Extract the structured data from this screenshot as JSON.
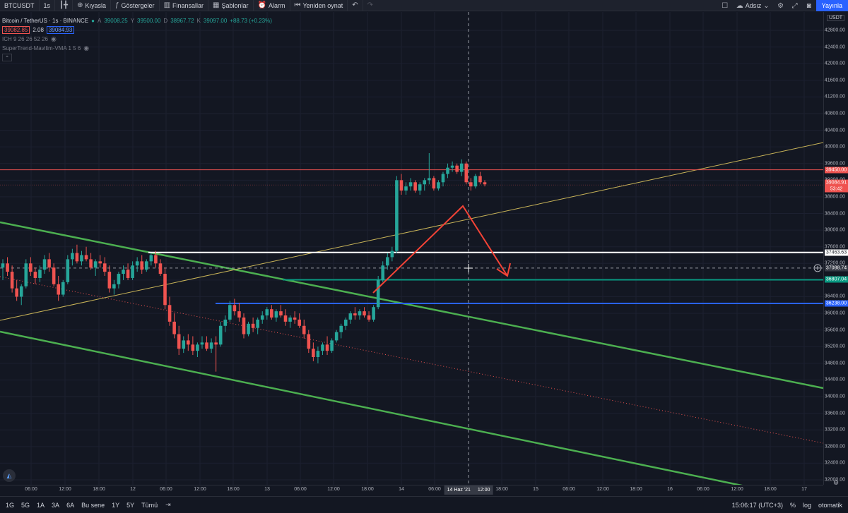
{
  "toolbar": {
    "symbol": "BTCUSDT",
    "interval": "1s",
    "compare": "Kıyasla",
    "indicators": "Göstergeler",
    "financials": "Finansallar",
    "templates": "Şablonlar",
    "alert": "Alarm",
    "replay": "Yeniden oynat",
    "layout_name": "Adsız",
    "publish": "Yayınla"
  },
  "legend": {
    "title": "Bitcoin / TetherUS · 1s · BINANCE",
    "o_key": "A",
    "o_val": "39008.25",
    "h_key": "Y",
    "h_val": "39500.00",
    "l_key": "D",
    "l_val": "38967.72",
    "c_key": "K",
    "c_val": "39097.00",
    "change": "+88.73 (+0.23%)",
    "bid": "39082.85",
    "spread": "2.08",
    "ask": "39084.93",
    "indicator1": "ICH 9 26 26 52 26",
    "indicator2": "SuperTrend-Mavilim-VMA 1 5 6"
  },
  "price_axis": {
    "currency": "USDT",
    "min": 32000,
    "max": 43000,
    "ticks": [
      "42800.00",
      "42400.00",
      "42000.00",
      "41600.00",
      "41200.00",
      "40800.00",
      "40400.00",
      "40000.00",
      "39600.00",
      "39200.00",
      "38800.00",
      "38400.00",
      "38000.00",
      "37600.00",
      "37200.00",
      "36800.00",
      "36400.00",
      "36000.00",
      "35600.00",
      "35200.00",
      "34800.00",
      "34400.00",
      "34000.00",
      "33600.00",
      "33200.00",
      "32800.00",
      "32400.00",
      "32000.00"
    ],
    "labels": [
      {
        "text": "39450.00",
        "price": 39450,
        "color": "#ef5350"
      },
      {
        "text": "39084.91",
        "price": 39130,
        "color": "#ef5350"
      },
      {
        "text": "53:42",
        "price": 38980,
        "color": "#ef5350"
      },
      {
        "text": "37463.63",
        "price": 37463.63,
        "color": "#ffffff"
      },
      {
        "text": "37088.74",
        "price": 37088.74,
        "color": "#363a45"
      },
      {
        "text": "36807.04",
        "price": 36807.04,
        "color": "#089981"
      },
      {
        "text": "36238.00",
        "price": 36238,
        "color": "#2962ff"
      }
    ]
  },
  "time_axis": {
    "ticks": [
      "06:00",
      "12:00",
      "18:00",
      "12",
      "06:00",
      "12:00",
      "18:00",
      "13",
      "06:00",
      "12:00",
      "18:00",
      "14",
      "06:00",
      "18:00",
      "15",
      "06:00",
      "12:00",
      "18:00",
      "16",
      "06:00",
      "12:00",
      "18:00",
      "17"
    ],
    "crosshair_label": "14 Haz '21",
    "crosshair_sub": "12:00"
  },
  "bottom": {
    "ranges": [
      "1G",
      "5G",
      "1A",
      "3A",
      "6A",
      "Bu sene",
      "1Y",
      "5Y",
      "Tümü"
    ],
    "clock": "15:06:17 (UTC+3)",
    "percent": "%",
    "log": "log",
    "auto": "otomatik"
  },
  "colors": {
    "up": "#26a69a",
    "down": "#ef5350",
    "resistance": "#ef5350",
    "support_white": "#ffffff",
    "support_teal": "#089981",
    "support_blue": "#2962ff",
    "channel": "#4caf50",
    "trendline": "#c9b458",
    "arrow": "#f44336"
  },
  "icons": {
    "add": "plus-circle-icon",
    "indicators": "fx-icon",
    "financials": "bar-chart-icon",
    "templates": "templates-icon",
    "alert": "alarm-clock-icon",
    "replay": "rewind-icon",
    "undo": "undo-icon",
    "redo": "redo-icon",
    "fullscreen": "fullscreen-icon",
    "cloud": "cloud-icon",
    "settings": "gear-icon",
    "snapshot": "camera-icon"
  },
  "chart_data": {
    "type": "candlestick",
    "ylim": [
      32000,
      43000
    ],
    "horizontal_levels": [
      {
        "price": 39450,
        "color": "#ef5350"
      },
      {
        "price": 37463.63,
        "color": "#ffffff"
      },
      {
        "price": 36807.04,
        "color": "#089981"
      },
      {
        "price": 36238,
        "color": "#2962ff"
      }
    ],
    "candles": [
      [
        37100,
        37300,
        36800,
        37200
      ],
      [
        37200,
        37350,
        36900,
        37000
      ],
      [
        37000,
        37150,
        36500,
        36600
      ],
      [
        36600,
        36800,
        36300,
        36400
      ],
      [
        36400,
        36700,
        36200,
        36650
      ],
      [
        36650,
        37300,
        36600,
        37200
      ],
      [
        37200,
        37350,
        36900,
        37000
      ],
      [
        37000,
        37100,
        36700,
        36850
      ],
      [
        36850,
        37150,
        36750,
        37050
      ],
      [
        37050,
        37400,
        36950,
        37300
      ],
      [
        37300,
        37450,
        37000,
        37100
      ],
      [
        37100,
        37200,
        36650,
        36700
      ],
      [
        36700,
        36900,
        36300,
        36450
      ],
      [
        36450,
        36800,
        36400,
        36750
      ],
      [
        36750,
        37400,
        36700,
        37300
      ],
      [
        37300,
        37550,
        37150,
        37450
      ],
      [
        37450,
        37650,
        37200,
        37250
      ],
      [
        37250,
        37500,
        37150,
        37400
      ],
      [
        37400,
        37600,
        37250,
        37300
      ],
      [
        37300,
        37450,
        37050,
        37100
      ],
      [
        37100,
        37300,
        36900,
        37250
      ],
      [
        37250,
        37400,
        37100,
        37200
      ],
      [
        37200,
        37350,
        36900,
        37000
      ],
      [
        37000,
        37150,
        36500,
        36600
      ],
      [
        36600,
        36800,
        36450,
        36700
      ],
      [
        36700,
        37000,
        36600,
        36950
      ],
      [
        36950,
        37150,
        36800,
        37050
      ],
      [
        37050,
        37200,
        36800,
        36850
      ],
      [
        36850,
        37250,
        36800,
        37150
      ],
      [
        37150,
        37350,
        37000,
        37250
      ],
      [
        37250,
        37400,
        36950,
        37050
      ],
      [
        37050,
        37300,
        37000,
        37250
      ],
      [
        37250,
        37450,
        37150,
        37400
      ],
      [
        37400,
        37500,
        37100,
        37200
      ],
      [
        37200,
        37300,
        36900,
        36950
      ],
      [
        36950,
        37100,
        36100,
        36200
      ],
      [
        36200,
        36400,
        35700,
        35800
      ],
      [
        35800,
        36000,
        35400,
        35500
      ],
      [
        35500,
        35700,
        35000,
        35150
      ],
      [
        35150,
        35450,
        35050,
        35350
      ],
      [
        35350,
        35500,
        35100,
        35250
      ],
      [
        35250,
        35450,
        35000,
        35100
      ],
      [
        35100,
        35300,
        34950,
        35250
      ],
      [
        35250,
        35450,
        35150,
        35300
      ],
      [
        35300,
        35450,
        35100,
        35150
      ],
      [
        35150,
        35400,
        35050,
        35300
      ],
      [
        35300,
        35450,
        34600,
        35250
      ],
      [
        35250,
        35800,
        35200,
        35700
      ],
      [
        35700,
        35950,
        35550,
        35850
      ],
      [
        35850,
        36300,
        35800,
        36200
      ],
      [
        36200,
        36350,
        35950,
        36050
      ],
      [
        36050,
        36250,
        35800,
        35900
      ],
      [
        35900,
        36000,
        35400,
        35500
      ],
      [
        35500,
        35800,
        35450,
        35750
      ],
      [
        35750,
        35900,
        35550,
        35650
      ],
      [
        35650,
        35900,
        35500,
        35850
      ],
      [
        35850,
        36050,
        35750,
        35950
      ],
      [
        35950,
        36150,
        35850,
        36100
      ],
      [
        36100,
        36200,
        35850,
        35900
      ],
      [
        35900,
        36100,
        35800,
        36050
      ],
      [
        36050,
        36200,
        35900,
        35950
      ],
      [
        35950,
        36100,
        35700,
        35800
      ],
      [
        35800,
        35950,
        35650,
        35900
      ],
      [
        35900,
        36050,
        35750,
        35850
      ],
      [
        35850,
        36000,
        35650,
        35700
      ],
      [
        35700,
        35850,
        35400,
        35500
      ],
      [
        35500,
        35600,
        35050,
        35150
      ],
      [
        35150,
        35300,
        34850,
        34950
      ],
      [
        34950,
        35200,
        34800,
        35100
      ],
      [
        35100,
        35300,
        35000,
        35250
      ],
      [
        35250,
        35450,
        35000,
        35100
      ],
      [
        35100,
        35400,
        35050,
        35350
      ],
      [
        35350,
        35600,
        35300,
        35550
      ],
      [
        35550,
        35750,
        35400,
        35700
      ],
      [
        35700,
        35900,
        35600,
        35850
      ],
      [
        35850,
        36050,
        35750,
        36000
      ],
      [
        36000,
        36150,
        35850,
        35950
      ],
      [
        35950,
        36100,
        35850,
        36050
      ],
      [
        36050,
        36150,
        35900,
        35950
      ],
      [
        35950,
        36050,
        35800,
        35850
      ],
      [
        35850,
        36200,
        35800,
        36150
      ],
      [
        36150,
        36900,
        36100,
        36800
      ],
      [
        36800,
        37250,
        36750,
        37150
      ],
      [
        37150,
        37450,
        37050,
        37350
      ],
      [
        37350,
        37600,
        37250,
        37500
      ],
      [
        37500,
        39300,
        37450,
        39200
      ],
      [
        39200,
        39350,
        38850,
        38950
      ],
      [
        38950,
        39150,
        38850,
        39050
      ],
      [
        39050,
        39250,
        38950,
        39150
      ],
      [
        39150,
        39200,
        38900,
        38950
      ],
      [
        38950,
        39150,
        38850,
        39100
      ],
      [
        39100,
        39250,
        38950,
        39200
      ],
      [
        39200,
        39850,
        39100,
        39250
      ],
      [
        39250,
        39300,
        38950,
        39000
      ],
      [
        39000,
        39200,
        38950,
        39150
      ],
      [
        39150,
        39400,
        39050,
        39350
      ],
      [
        39350,
        39600,
        39250,
        39500
      ],
      [
        39500,
        39650,
        39400,
        39550
      ],
      [
        39550,
        39600,
        39350,
        39400
      ],
      [
        39400,
        39700,
        39300,
        39600
      ],
      [
        39600,
        39650,
        39100,
        39150
      ],
      [
        39150,
        39250,
        38950,
        39050
      ],
      [
        39050,
        39350,
        39000,
        39300
      ],
      [
        39300,
        39400,
        39100,
        39150
      ],
      [
        39150,
        39200,
        39050,
        39100
      ]
    ]
  }
}
